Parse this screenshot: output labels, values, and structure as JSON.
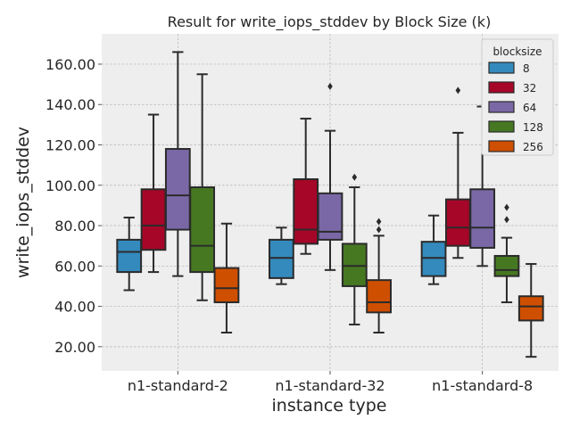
{
  "chart_data": {
    "type": "box",
    "title": "Result for write_iops_stddev by Block Size (k)",
    "xlabel": "instance type",
    "ylabel": "write_iops_stddev",
    "categories": [
      "n1-standard-2",
      "n1-standard-32",
      "n1-standard-8"
    ],
    "ylim": [
      8,
      175
    ],
    "yticks": [
      "20.00",
      "40.00",
      "60.00",
      "80.00",
      "100.00",
      "120.00",
      "140.00",
      "160.00"
    ],
    "ytick_values": [
      20,
      40,
      60,
      80,
      100,
      120,
      140,
      160
    ],
    "grid": true,
    "legend": {
      "title": "blocksize",
      "placement": "top-right"
    },
    "series": [
      {
        "name": "8",
        "color": "#348ABD",
        "boxes": [
          {
            "whisker_low": 48,
            "q1": 57,
            "median": 67,
            "q3": 73,
            "whisker_high": 84,
            "outliers": []
          },
          {
            "whisker_low": 51,
            "q1": 54,
            "median": 64,
            "q3": 73,
            "whisker_high": 79,
            "outliers": []
          },
          {
            "whisker_low": 51,
            "q1": 55,
            "median": 64,
            "q3": 72,
            "whisker_high": 85,
            "outliers": []
          }
        ]
      },
      {
        "name": "32",
        "color": "#A60628",
        "boxes": [
          {
            "whisker_low": 57,
            "q1": 68,
            "median": 80,
            "q3": 98,
            "whisker_high": 135,
            "outliers": []
          },
          {
            "whisker_low": 66,
            "q1": 71,
            "median": 78,
            "q3": 103,
            "whisker_high": 133,
            "outliers": []
          },
          {
            "whisker_low": 64,
            "q1": 70,
            "median": 79,
            "q3": 93,
            "whisker_high": 126,
            "outliers": [
              147
            ]
          }
        ]
      },
      {
        "name": "64",
        "color": "#7A68A6",
        "boxes": [
          {
            "whisker_low": 55,
            "q1": 78,
            "median": 95,
            "q3": 118,
            "whisker_high": 166,
            "outliers": []
          },
          {
            "whisker_low": 58,
            "q1": 73,
            "median": 77,
            "q3": 96,
            "whisker_high": 127,
            "outliers": [
              149
            ]
          },
          {
            "whisker_low": 60,
            "q1": 69,
            "median": 79,
            "q3": 98,
            "whisker_high": 139,
            "outliers": []
          }
        ]
      },
      {
        "name": "128",
        "color": "#467821",
        "boxes": [
          {
            "whisker_low": 43,
            "q1": 57,
            "median": 70,
            "q3": 99,
            "whisker_high": 155,
            "outliers": []
          },
          {
            "whisker_low": 31,
            "q1": 50,
            "median": 60,
            "q3": 71,
            "whisker_high": 99,
            "outliers": [
              104
            ]
          },
          {
            "whisker_low": 42,
            "q1": 55,
            "median": 58,
            "q3": 65,
            "whisker_high": 74,
            "outliers": [
              83,
              89
            ]
          }
        ]
      },
      {
        "name": "256",
        "color": "#CF4F00",
        "boxes": [
          {
            "whisker_low": 27,
            "q1": 42,
            "median": 49,
            "q3": 59,
            "whisker_high": 81,
            "outliers": []
          },
          {
            "whisker_low": 27,
            "q1": 37,
            "median": 42,
            "q3": 53,
            "whisker_high": 75,
            "outliers": [
              78,
              82
            ]
          },
          {
            "whisker_low": 15,
            "q1": 33,
            "median": 40,
            "q3": 45,
            "whisker_high": 61,
            "outliers": []
          }
        ]
      }
    ]
  }
}
